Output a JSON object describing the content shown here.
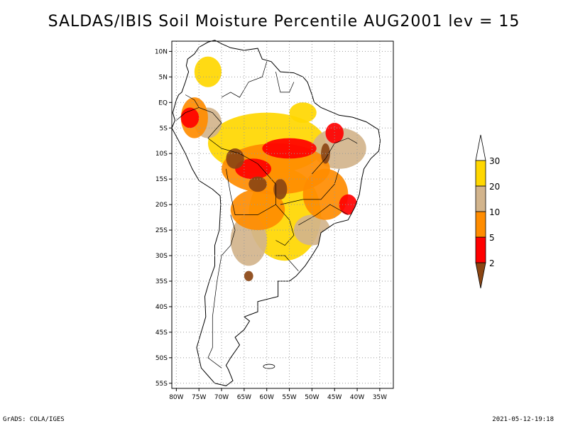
{
  "title": "SALDAS/IBIS Soil Moisture Percentile AUG2001 lev = 15",
  "footer": {
    "left": "GrADS: COLA/IGES",
    "right": "2021-05-12-19:18"
  },
  "map": {
    "lon_range": [
      -81,
      -32
    ],
    "lat_range": [
      12,
      -56
    ],
    "lon_ticks": [
      "80W",
      "75W",
      "70W",
      "65W",
      "60W",
      "55W",
      "50W",
      "45W",
      "40W",
      "35W"
    ],
    "lat_ticks": [
      "10N",
      "5N",
      "EQ",
      "5S",
      "10S",
      "15S",
      "20S",
      "25S",
      "30S",
      "35S",
      "40S",
      "45S",
      "50S",
      "55S"
    ],
    "gridlines": "dotted"
  },
  "colorbar": {
    "labels": [
      "2",
      "5",
      "10",
      "20",
      "30"
    ],
    "colors": [
      "#8b4513",
      "#ff0000",
      "#ff8c00",
      "#d2b48c",
      "#ffd700"
    ],
    "upper_cap_color": "#ffffff"
  },
  "moisture_regions": [
    {
      "category": "30",
      "color": "#ffd700",
      "lon": -60,
      "lat": -8,
      "rx": 13,
      "ry": 6
    },
    {
      "category": "30",
      "color": "#ffd700",
      "lon": -56,
      "lat": -22,
      "rx": 8,
      "ry": 9
    },
    {
      "category": "30",
      "color": "#ffd700",
      "lon": -73,
      "lat": 6,
      "rx": 3,
      "ry": 3
    },
    {
      "category": "30",
      "color": "#ffd700",
      "lon": -52,
      "lat": -2,
      "rx": 3,
      "ry": 2
    },
    {
      "category": "20",
      "color": "#d2b48c",
      "lon": -44,
      "lat": -9,
      "rx": 6,
      "ry": 4
    },
    {
      "category": "20",
      "color": "#d2b48c",
      "lon": -64,
      "lat": -27,
      "rx": 4,
      "ry": 5
    },
    {
      "category": "20",
      "color": "#d2b48c",
      "lon": -50,
      "lat": -25,
      "rx": 4,
      "ry": 3
    },
    {
      "category": "20",
      "color": "#d2b48c",
      "lon": -73,
      "lat": -4,
      "rx": 3,
      "ry": 3
    },
    {
      "category": "10",
      "color": "#ff8c00",
      "lon": -58,
      "lat": -13,
      "rx": 12,
      "ry": 5
    },
    {
      "category": "10",
      "color": "#ff8c00",
      "lon": -47,
      "lat": -18,
      "rx": 5,
      "ry": 5
    },
    {
      "category": "10",
      "color": "#ff8c00",
      "lon": -62,
      "lat": -21,
      "rx": 6,
      "ry": 4
    },
    {
      "category": "10",
      "color": "#ff8c00",
      "lon": -76,
      "lat": -3,
      "rx": 3,
      "ry": 4
    },
    {
      "category": "5",
      "color": "#ff0000",
      "lon": -55,
      "lat": -9,
      "rx": 6,
      "ry": 2
    },
    {
      "category": "5",
      "color": "#ff0000",
      "lon": -63,
      "lat": -13,
      "rx": 4,
      "ry": 2
    },
    {
      "category": "5",
      "color": "#ff0000",
      "lon": -42,
      "lat": -20,
      "rx": 2,
      "ry": 2
    },
    {
      "category": "5",
      "color": "#ff0000",
      "lon": -77,
      "lat": -3,
      "rx": 2,
      "ry": 2
    },
    {
      "category": "5",
      "color": "#ff0000",
      "lon": -45,
      "lat": -6,
      "rx": 2,
      "ry": 2
    },
    {
      "category": "2",
      "color": "#8b4513",
      "lon": -67,
      "lat": -11,
      "rx": 2,
      "ry": 2
    },
    {
      "category": "2",
      "color": "#8b4513",
      "lon": -62,
      "lat": -16,
      "rx": 2,
      "ry": 1.5
    },
    {
      "category": "2",
      "color": "#8b4513",
      "lon": -57,
      "lat": -17,
      "rx": 1.5,
      "ry": 2
    },
    {
      "category": "2",
      "color": "#8b4513",
      "lon": -47,
      "lat": -10,
      "rx": 1,
      "ry": 2
    },
    {
      "category": "2",
      "color": "#8b4513",
      "lon": -64,
      "lat": -34,
      "rx": 1,
      "ry": 1
    }
  ]
}
